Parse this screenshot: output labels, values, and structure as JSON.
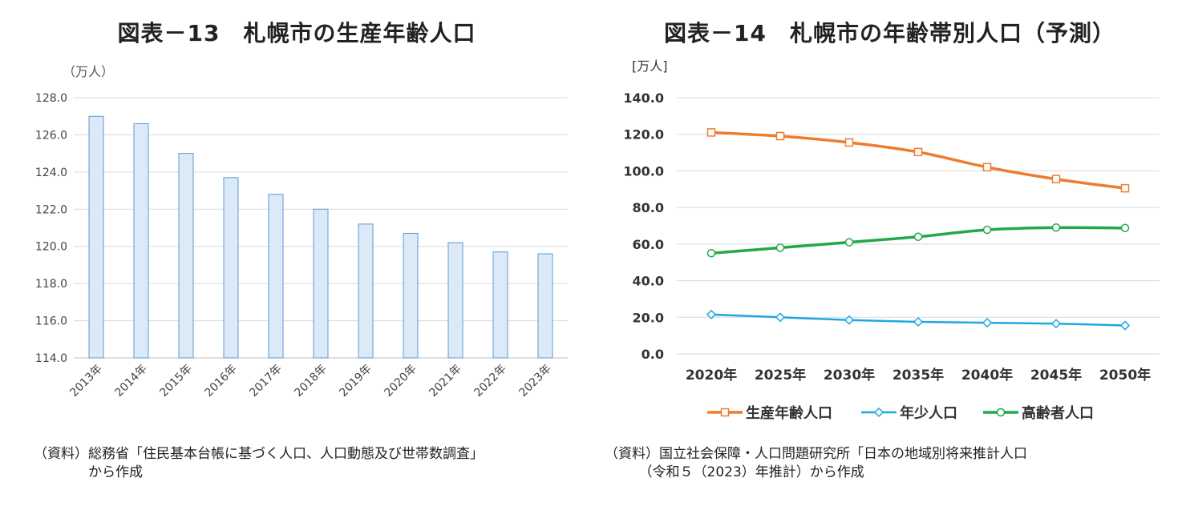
{
  "chart_data": [
    {
      "type": "bar",
      "title": "図表－13　札幌市の生産年齢人口",
      "unit_label": "（万人）",
      "categories": [
        "2013年",
        "2014年",
        "2015年",
        "2016年",
        "2017年",
        "2018年",
        "2019年",
        "2020年",
        "2021年",
        "2022年",
        "2023年"
      ],
      "values": [
        127.0,
        126.6,
        125.0,
        123.7,
        122.8,
        122.0,
        121.2,
        120.7,
        120.2,
        119.7,
        119.6
      ],
      "ylim": [
        114.0,
        128.0
      ],
      "yticks": [
        "114.0",
        "116.0",
        "118.0",
        "120.0",
        "122.0",
        "124.0",
        "126.0",
        "128.0"
      ],
      "grid": true,
      "bar_fill": "#dce9f7",
      "bar_stroke": "#5b9bd5",
      "source": "（資料）総務省「住民基本台帳に基づく人口、人口動態及び世帯数調査」\n　　　　から作成"
    },
    {
      "type": "line",
      "title": "図表－14　札幌市の年齢帯別人口（予測）",
      "unit_label": "[万人]",
      "categories": [
        "2020年",
        "2025年",
        "2030年",
        "2035年",
        "2040年",
        "2045年",
        "2050年"
      ],
      "ylim": [
        0.0,
        140.0
      ],
      "yticks": [
        "0.0",
        "20.0",
        "40.0",
        "60.0",
        "80.0",
        "100.0",
        "120.0",
        "140.0"
      ],
      "grid": true,
      "legend_position": "bottom",
      "series": [
        {
          "name": "生産年齢人口",
          "color": "#ed7d31",
          "marker": "square",
          "values": [
            121.0,
            119.0,
            115.5,
            110.3,
            102.0,
            95.5,
            90.5
          ]
        },
        {
          "name": "年少人口",
          "color": "#1fa8e0",
          "marker": "diamond",
          "values": [
            21.5,
            20.0,
            18.5,
            17.5,
            17.0,
            16.5,
            15.5
          ]
        },
        {
          "name": "高齢者人口",
          "color": "#22a84a",
          "marker": "circle",
          "values": [
            55.0,
            58.0,
            61.0,
            64.0,
            67.8,
            69.0,
            68.8
          ]
        }
      ],
      "source": "（資料）国立社会保障・人口問題研究所「日本の地域別将来推計人口\n　　　（令和５（2023）年推計）から作成"
    }
  ]
}
